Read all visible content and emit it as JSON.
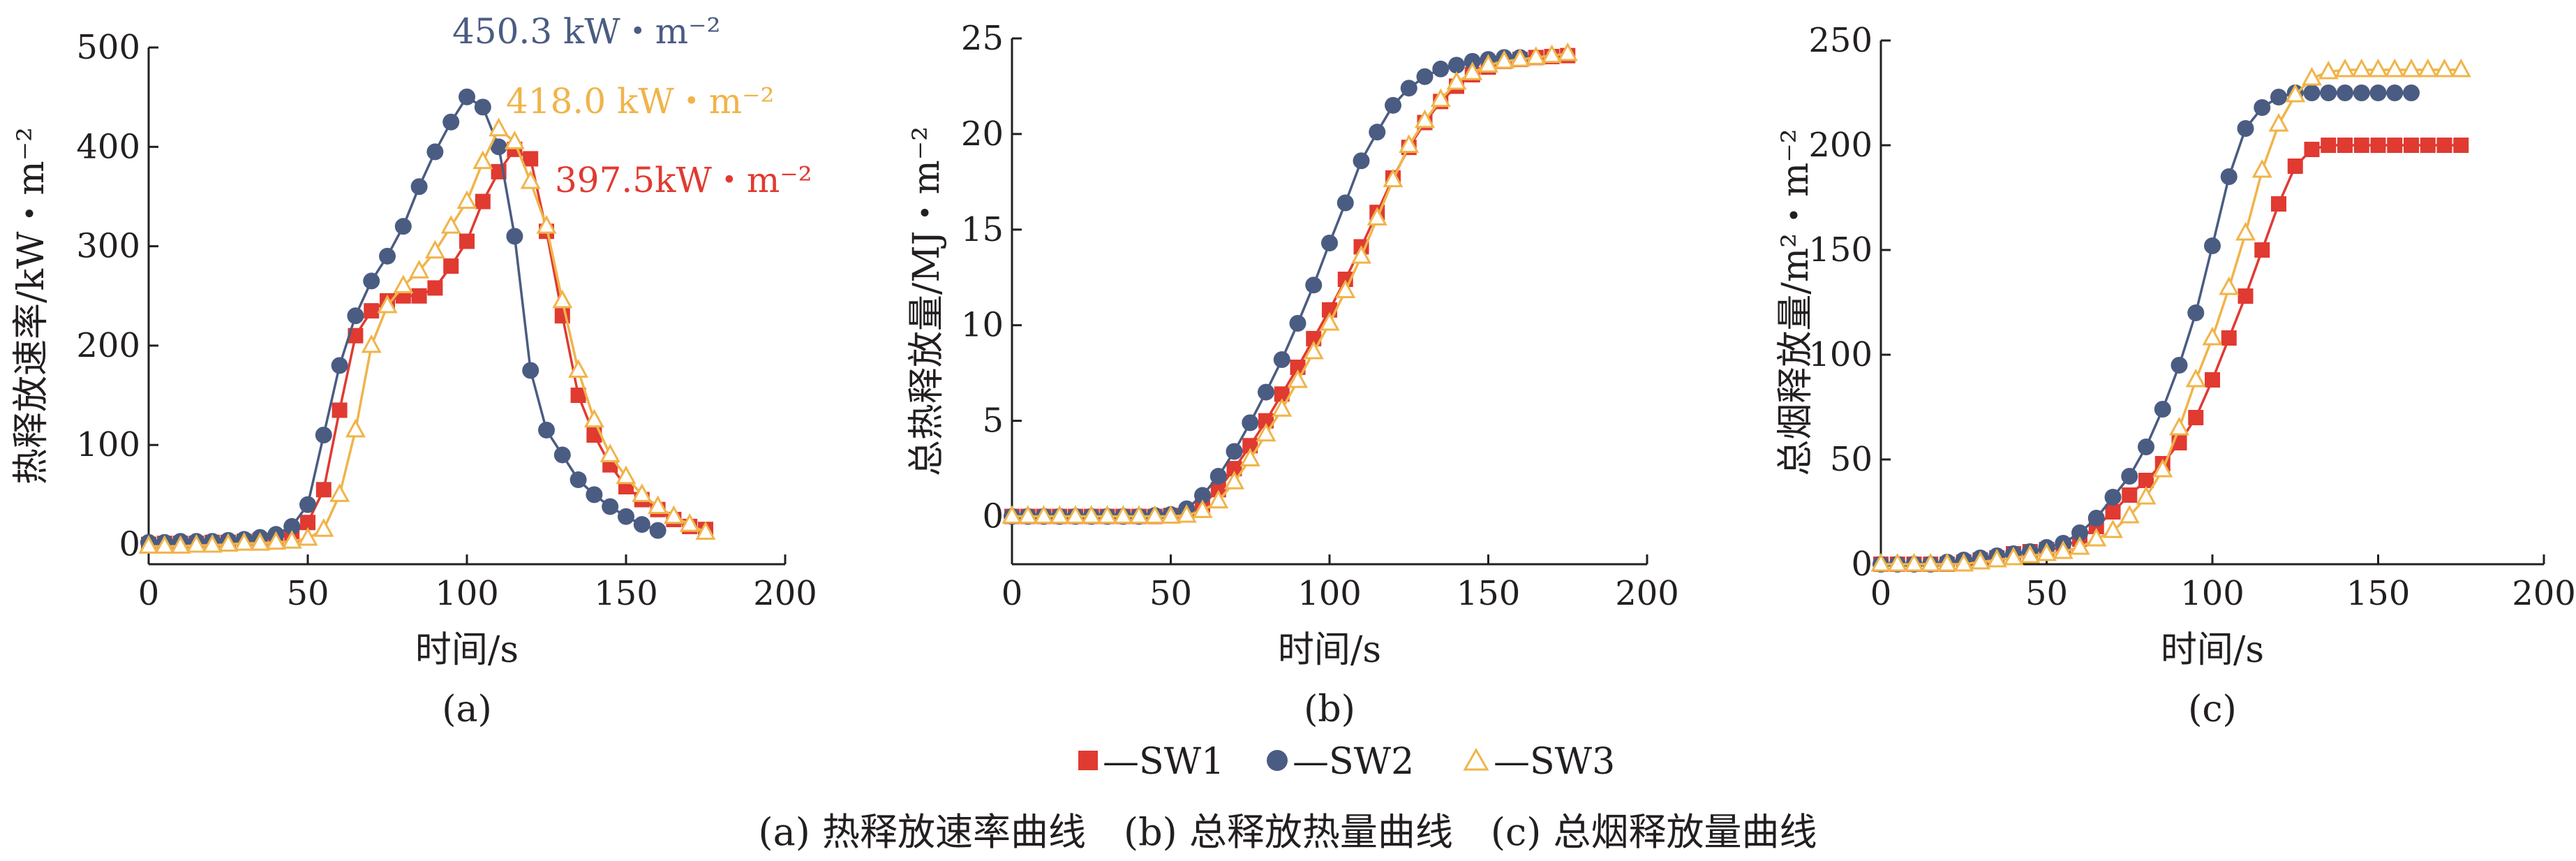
{
  "colors": {
    "SW1": "#e03a31",
    "SW2": "#4a5c82",
    "SW3": "#f0b44a",
    "axis": "#231f20"
  },
  "legend": [
    {
      "key": "SW1",
      "label": "—SW1",
      "marker": "square"
    },
    {
      "key": "SW2",
      "label": "—SW2",
      "marker": "circle"
    },
    {
      "key": "SW3",
      "label": "—SW3",
      "marker": "triangle-open"
    }
  ],
  "caption": "(a) 热释放速率曲线　(b) 总释放热量曲线　(c) 总烟释放量曲线",
  "chart_data": [
    {
      "type": "line",
      "sublabel": "(a)",
      "xlabel": "时间/s",
      "ylabel": "热释放速率/kW・m⁻²",
      "xlim": [
        0,
        200
      ],
      "ylim": [
        -20,
        500
      ],
      "xticks": [
        0,
        50,
        100,
        150,
        200
      ],
      "yticks": [
        0,
        100,
        200,
        300,
        400,
        500
      ],
      "annotations": [
        {
          "text": "450.3 kW・m⁻²",
          "series": "SW2"
        },
        {
          "text": "418.0 kW・m⁻²",
          "series": "SW3"
        },
        {
          "text": "397.5kW・m⁻²",
          "series": "SW1"
        }
      ],
      "series": [
        {
          "name": "SW1",
          "x": [
            0,
            5,
            10,
            15,
            20,
            25,
            30,
            35,
            40,
            45,
            50,
            55,
            60,
            65,
            70,
            75,
            80,
            85,
            90,
            95,
            100,
            105,
            110,
            115,
            120,
            125,
            130,
            135,
            140,
            145,
            150,
            155,
            160,
            165,
            170,
            175
          ],
          "y": [
            0,
            1,
            1,
            1,
            2,
            2,
            3,
            4,
            6,
            10,
            22,
            55,
            135,
            210,
            235,
            245,
            250,
            250,
            258,
            280,
            305,
            345,
            375,
            397.5,
            388,
            315,
            230,
            150,
            110,
            80,
            58,
            45,
            35,
            25,
            18,
            15
          ]
        },
        {
          "name": "SW2",
          "x": [
            0,
            5,
            10,
            15,
            20,
            25,
            30,
            35,
            40,
            45,
            50,
            55,
            60,
            65,
            70,
            75,
            80,
            85,
            90,
            95,
            100,
            105,
            110,
            115,
            120,
            125,
            130,
            135,
            140,
            145,
            150,
            155,
            160
          ],
          "y": [
            2,
            2,
            3,
            3,
            3,
            4,
            5,
            7,
            10,
            18,
            40,
            110,
            180,
            230,
            265,
            290,
            320,
            360,
            395,
            425,
            450.3,
            440,
            400,
            310,
            175,
            115,
            90,
            65,
            50,
            38,
            28,
            20,
            14
          ]
        },
        {
          "name": "SW3",
          "x": [
            0,
            5,
            10,
            15,
            20,
            25,
            30,
            35,
            40,
            45,
            50,
            55,
            60,
            65,
            70,
            75,
            80,
            85,
            90,
            95,
            100,
            105,
            110,
            115,
            120,
            125,
            130,
            135,
            140,
            145,
            150,
            155,
            160,
            165,
            170,
            175
          ],
          "y": [
            -2,
            -2,
            -2,
            -1,
            -1,
            0,
            1,
            1,
            2,
            3,
            6,
            15,
            50,
            115,
            200,
            240,
            260,
            275,
            295,
            320,
            345,
            385,
            418,
            405,
            365,
            320,
            245,
            175,
            125,
            90,
            68,
            50,
            38,
            28,
            20,
            12
          ]
        }
      ]
    },
    {
      "type": "line",
      "sublabel": "(b)",
      "xlabel": "时间/s",
      "ylabel": "总热释放量/MJ・m⁻²",
      "xlim": [
        0,
        200
      ],
      "ylim": [
        -2.5,
        25
      ],
      "xticks": [
        0,
        50,
        100,
        150,
        200
      ],
      "yticks": [
        0,
        5,
        10,
        15,
        20,
        25
      ],
      "series": [
        {
          "name": "SW1",
          "x": [
            0,
            5,
            10,
            15,
            20,
            25,
            30,
            35,
            40,
            45,
            50,
            55,
            60,
            65,
            70,
            75,
            80,
            85,
            90,
            95,
            100,
            105,
            110,
            115,
            120,
            125,
            130,
            135,
            140,
            145,
            150,
            155,
            160,
            165,
            170,
            175
          ],
          "y": [
            0,
            0,
            0,
            0,
            0,
            0,
            0,
            0,
            0,
            0,
            0.05,
            0.2,
            0.6,
            1.4,
            2.5,
            3.7,
            5,
            6.4,
            7.8,
            9.3,
            10.8,
            12.4,
            14.1,
            15.9,
            17.7,
            19.3,
            20.6,
            21.7,
            22.5,
            23.1,
            23.5,
            23.8,
            23.9,
            24,
            24.05,
            24.1
          ]
        },
        {
          "name": "SW2",
          "x": [
            0,
            5,
            10,
            15,
            20,
            25,
            30,
            35,
            40,
            45,
            50,
            55,
            60,
            65,
            70,
            75,
            80,
            85,
            90,
            95,
            100,
            105,
            110,
            115,
            120,
            125,
            130,
            135,
            140,
            145,
            150,
            155,
            160
          ],
          "y": [
            0,
            0,
            0,
            0,
            0,
            0,
            0,
            0,
            0,
            0.05,
            0.1,
            0.4,
            1.1,
            2.1,
            3.4,
            4.9,
            6.5,
            8.2,
            10.1,
            12.1,
            14.3,
            16.4,
            18.6,
            20.1,
            21.5,
            22.4,
            23,
            23.4,
            23.6,
            23.8,
            23.9,
            24,
            24
          ]
        },
        {
          "name": "SW3",
          "x": [
            0,
            5,
            10,
            15,
            20,
            25,
            30,
            35,
            40,
            45,
            50,
            55,
            60,
            65,
            70,
            75,
            80,
            85,
            90,
            95,
            100,
            105,
            110,
            115,
            120,
            125,
            130,
            135,
            140,
            145,
            150,
            155,
            160,
            165,
            170,
            175
          ],
          "y": [
            0,
            0,
            0,
            0,
            0,
            0,
            0,
            0,
            0,
            0,
            0,
            0.05,
            0.3,
            0.8,
            1.8,
            3,
            4.3,
            5.6,
            7.1,
            8.6,
            10.1,
            11.8,
            13.6,
            15.6,
            17.6,
            19.4,
            20.7,
            21.8,
            22.7,
            23.2,
            23.6,
            23.8,
            23.9,
            24,
            24.1,
            24.2
          ]
        }
      ]
    },
    {
      "type": "line",
      "sublabel": "(c)",
      "xlabel": "时间/s",
      "ylabel": "总烟释放量/m²・m⁻²",
      "xlim": [
        0,
        200
      ],
      "ylim": [
        0,
        250
      ],
      "xticks": [
        0,
        50,
        100,
        150,
        200
      ],
      "yticks": [
        0,
        50,
        100,
        150,
        200,
        250
      ],
      "series": [
        {
          "name": "SW1",
          "x": [
            0,
            5,
            10,
            15,
            20,
            25,
            30,
            35,
            40,
            45,
            50,
            55,
            60,
            65,
            70,
            75,
            80,
            85,
            90,
            95,
            100,
            105,
            110,
            115,
            120,
            125,
            130,
            135,
            140,
            145,
            150,
            155,
            160,
            165,
            170,
            175
          ],
          "y": [
            0,
            0,
            0,
            0,
            0,
            1,
            2,
            3,
            5,
            6,
            7,
            8,
            12,
            18,
            25,
            33,
            40,
            48,
            58,
            70,
            88,
            108,
            128,
            150,
            172,
            190,
            198,
            200,
            200,
            200,
            200,
            200,
            200,
            200,
            200,
            200
          ]
        },
        {
          "name": "SW2",
          "x": [
            0,
            5,
            10,
            15,
            20,
            25,
            30,
            35,
            40,
            45,
            50,
            55,
            60,
            65,
            70,
            75,
            80,
            85,
            90,
            95,
            100,
            105,
            110,
            115,
            120,
            125,
            130,
            135,
            140,
            145,
            150,
            155,
            160
          ],
          "y": [
            0,
            0,
            0,
            0,
            1,
            2,
            3,
            4,
            5,
            6,
            8,
            10,
            15,
            22,
            32,
            42,
            56,
            74,
            95,
            120,
            152,
            185,
            208,
            218,
            223,
            225,
            225,
            225,
            225,
            225,
            225,
            225,
            225
          ]
        },
        {
          "name": "SW3",
          "x": [
            0,
            5,
            10,
            15,
            20,
            25,
            30,
            35,
            40,
            45,
            50,
            55,
            60,
            65,
            70,
            75,
            80,
            85,
            90,
            95,
            100,
            105,
            110,
            115,
            120,
            125,
            130,
            135,
            140,
            145,
            150,
            155,
            160,
            165,
            170,
            175
          ],
          "y": [
            0,
            0,
            0,
            0,
            0,
            0,
            1,
            2,
            3,
            4,
            5,
            6,
            8,
            12,
            16,
            23,
            32,
            45,
            65,
            88,
            108,
            132,
            158,
            188,
            210,
            224,
            232,
            235,
            236,
            236,
            236,
            236,
            236,
            236,
            236,
            236
          ]
        }
      ]
    }
  ]
}
